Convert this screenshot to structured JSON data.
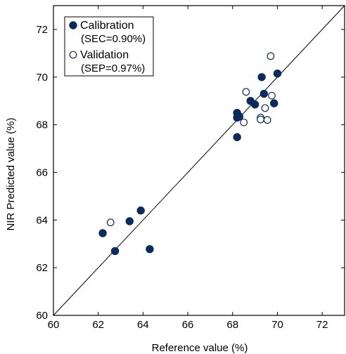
{
  "chart_data": {
    "type": "scatter",
    "title": "",
    "xlabel": "Reference value (%)",
    "ylabel": "NIR Predicted value (%)",
    "xlim": [
      60,
      73
    ],
    "ylim": [
      60,
      73
    ],
    "xticks": [
      60,
      62,
      64,
      66,
      68,
      70,
      72
    ],
    "yticks": [
      60,
      62,
      64,
      66,
      68,
      70,
      72
    ],
    "xtick_labels": [
      "60",
      "62",
      "64",
      "66",
      "68",
      "70",
      "72"
    ],
    "ytick_labels": [
      "60",
      "62",
      "64",
      "66",
      "68",
      "70",
      "72"
    ],
    "grid": false,
    "reference_line": "y = x",
    "legend_placement": "top-left",
    "series": [
      {
        "name": "Calibration",
        "note": "(SEC=0.90%)",
        "marker": "filled-circle",
        "color": "#0d2a5c",
        "points": [
          [
            62.2,
            63.45
          ],
          [
            62.75,
            62.7
          ],
          [
            63.4,
            63.95
          ],
          [
            63.9,
            64.4
          ],
          [
            64.3,
            62.78
          ],
          [
            68.2,
            68.5
          ],
          [
            68.2,
            68.3
          ],
          [
            68.3,
            68.35
          ],
          [
            68.2,
            67.48
          ],
          [
            68.8,
            69.0
          ],
          [
            69.0,
            68.85
          ],
          [
            69.3,
            70.0
          ],
          [
            69.4,
            69.3
          ],
          [
            69.85,
            68.9
          ],
          [
            70.0,
            70.15
          ]
        ]
      },
      {
        "name": "Validation",
        "note": "(SEP=0.97%)",
        "marker": "open-circle",
        "color": "#0d2a5c",
        "points": [
          [
            62.55,
            63.9
          ],
          [
            68.5,
            68.1
          ],
          [
            68.6,
            69.38
          ],
          [
            69.25,
            68.3
          ],
          [
            69.25,
            68.22
          ],
          [
            69.45,
            68.7
          ],
          [
            69.55,
            68.2
          ],
          [
            69.7,
            70.88
          ],
          [
            69.75,
            69.22
          ]
        ]
      }
    ]
  }
}
